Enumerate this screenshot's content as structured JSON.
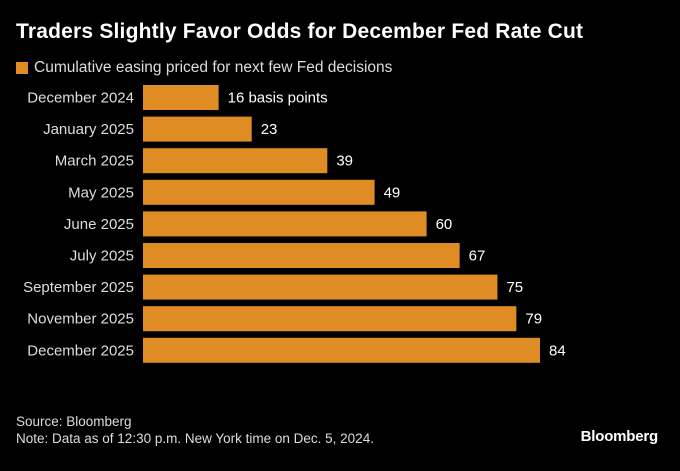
{
  "header": {
    "title": "Traders Slightly Favor Odds for December Fed Rate Cut"
  },
  "legend": {
    "label": "Cumulative easing priced for next few Fed decisions",
    "color": "#E08C25"
  },
  "chart_data": {
    "type": "bar",
    "orientation": "horizontal",
    "title": "Traders Slightly Favor Odds for December Fed Rate Cut",
    "categories": [
      "December 2024",
      "January 2025",
      "March 2025",
      "May 2025",
      "June 2025",
      "July 2025",
      "September 2025",
      "November 2025",
      "December 2025"
    ],
    "series": [
      {
        "name": "Cumulative easing priced for next few Fed decisions",
        "values": [
          16,
          23,
          39,
          49,
          60,
          67,
          75,
          79,
          84
        ],
        "color": "#E08C25"
      }
    ],
    "value_labels": [
      "16 basis points",
      "23",
      "39",
      "49",
      "60",
      "67",
      "75",
      "79",
      "84"
    ],
    "xlabel": "",
    "ylabel": "",
    "xlim": [
      0,
      84
    ],
    "grid": false,
    "legend_position": "top-left"
  },
  "footer": {
    "source": "Source: Bloomberg",
    "note": "Note: Data as of 12:30 p.m. New York time on Dec. 5, 2024.",
    "brand": "Bloomberg"
  }
}
